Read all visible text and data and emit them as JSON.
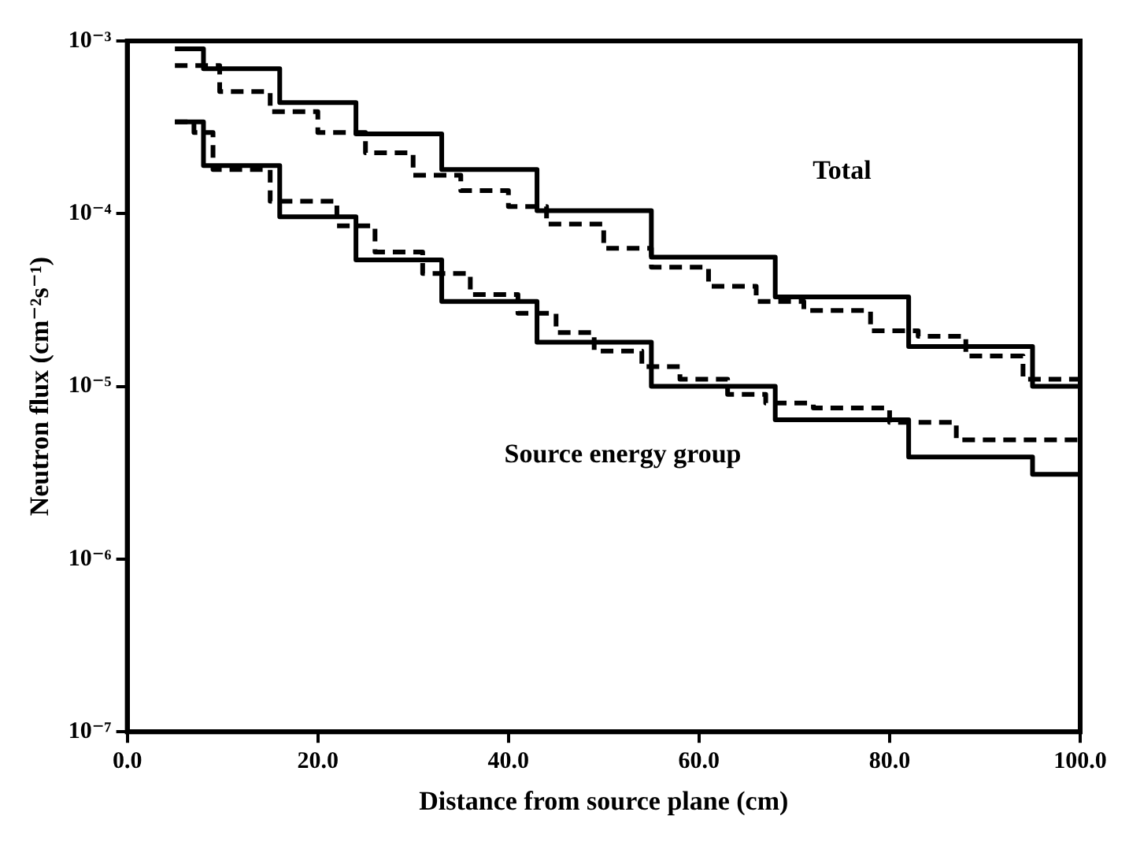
{
  "chart_data": {
    "type": "step",
    "xlabel": "Distance from source plane (cm)",
    "ylabel": "Neutron flux (cm⁻²s⁻¹)",
    "log": "y",
    "grid": false,
    "legend": false,
    "xlim": [
      0,
      100
    ],
    "xticks": [
      {
        "value": 0,
        "label": "0.0"
      },
      {
        "value": 20,
        "label": "20.0"
      },
      {
        "value": 40,
        "label": "40.0"
      },
      {
        "value": 60,
        "label": "60.0"
      },
      {
        "value": 80,
        "label": "80.0"
      },
      {
        "value": 100,
        "label": "100.0"
      }
    ],
    "ylim": [
      1e-07,
      0.001
    ],
    "yticks": [
      {
        "value": 1e-07,
        "label": "10⁻⁷"
      },
      {
        "value": 1e-06,
        "label": "10⁻⁶"
      },
      {
        "value": 1e-05,
        "label": "10⁻⁵"
      },
      {
        "value": 0.0001,
        "label": "10⁻⁴"
      },
      {
        "value": 0.001,
        "label": "10⁻³"
      }
    ],
    "series": [
      {
        "color": "#000000",
        "line_style": "solid",
        "x": [
          5,
          8,
          16,
          24,
          33,
          43,
          55,
          68,
          82,
          95,
          100
        ],
        "values": [
          0.0009,
          0.00069,
          0.00044,
          0.00029,
          0.00018,
          0.000104,
          5.6e-05,
          3.3e-05,
          1.7e-05,
          1e-05,
          1e-05
        ]
      },
      {
        "color": "#000000",
        "line_style": "dashed",
        "x": [
          5,
          9.7,
          15,
          20,
          25,
          30,
          35,
          40,
          44,
          50,
          55,
          61,
          66,
          71,
          78,
          83,
          88,
          94,
          100
        ],
        "values": [
          0.00072,
          0.00051,
          0.00039,
          0.000295,
          0.000225,
          0.000167,
          0.000136,
          0.00011,
          8.7e-05,
          6.3e-05,
          4.9e-05,
          3.8e-05,
          3.1e-05,
          2.75e-05,
          2.1e-05,
          1.95e-05,
          1.5e-05,
          1.1e-05,
          1.1e-05
        ]
      },
      {
        "color": "#000000",
        "line_style": "solid",
        "x": [
          5,
          8,
          16,
          24,
          33,
          43,
          55,
          68,
          82,
          95,
          100
        ],
        "values": [
          0.00034,
          0.00019,
          9.6e-05,
          5.4e-05,
          3.1e-05,
          1.8e-05,
          1e-05,
          6.4e-06,
          3.9e-06,
          3.1e-06,
          3.1e-06
        ]
      },
      {
        "color": "#000000",
        "line_style": "dashed",
        "x": [
          5,
          7,
          9,
          15,
          22,
          26,
          31,
          36,
          41,
          45,
          49,
          54,
          58,
          63,
          67,
          72,
          80,
          87,
          100
        ],
        "values": [
          0.00034,
          0.000295,
          0.00018,
          0.000118,
          8.5e-05,
          6e-05,
          4.5e-05,
          3.4e-05,
          2.65e-05,
          2.05e-05,
          1.6e-05,
          1.3e-05,
          1.1e-05,
          9e-06,
          8e-06,
          7.5e-06,
          6.2e-06,
          4.9e-06,
          4.9e-06
        ]
      }
    ],
    "annotations": [
      "Total",
      "Source energy group"
    ]
  }
}
